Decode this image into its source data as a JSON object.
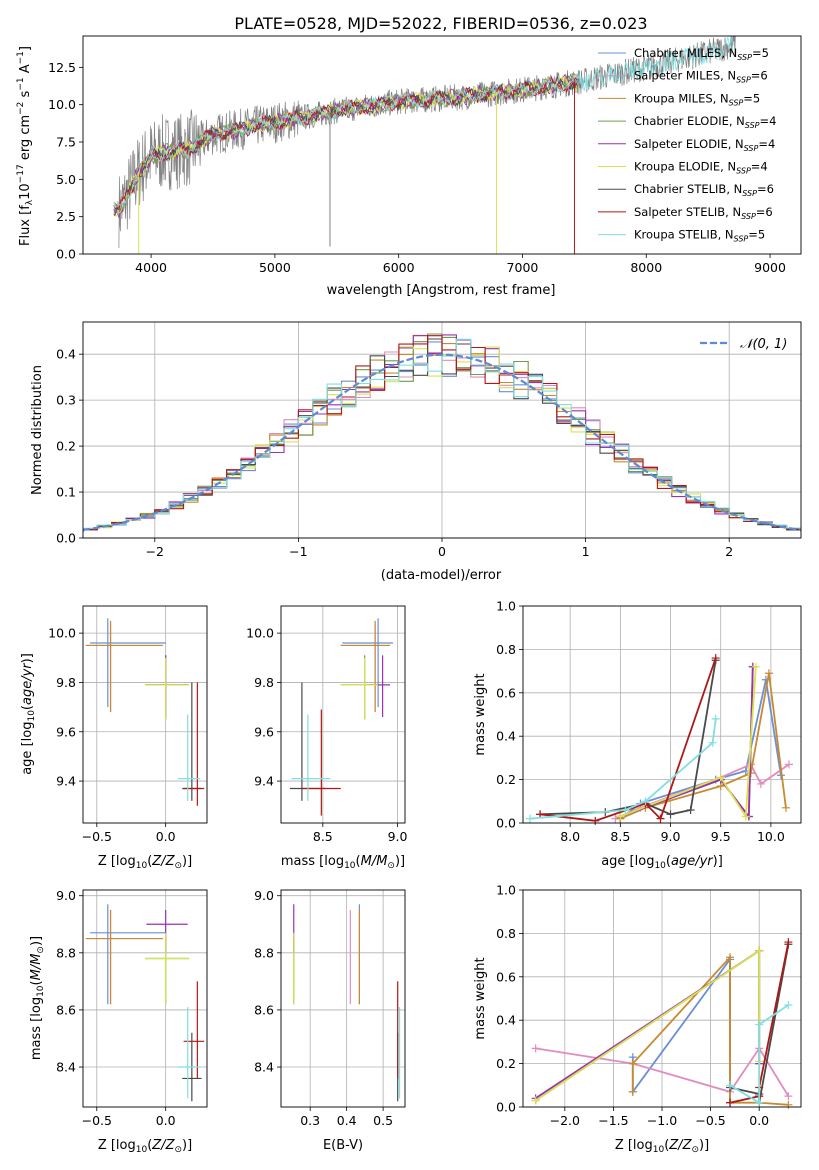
{
  "figure": {
    "title": "PLATE=0528, MJD=52022, FIBERID=0536, z=0.023"
  },
  "models": [
    {
      "label": "Chabrier MILES, N",
      "sub": "SSP",
      "tail": "=5",
      "color": "#6a8fd8"
    },
    {
      "label": "Salpeter MILES, N",
      "sub": "SSP",
      "tail": "=6",
      "color": "#e28bbf"
    },
    {
      "label": "Kroupa MILES, N",
      "sub": "SSP",
      "tail": "=5",
      "color": "#c88a2e"
    },
    {
      "label": "Chabrier ELODIE, N",
      "sub": "SSP",
      "tail": "=4",
      "color": "#6e9a52"
    },
    {
      "label": "Salpeter ELODIE, N",
      "sub": "SSP",
      "tail": "=4",
      "color": "#9b30b0"
    },
    {
      "label": "Kroupa ELODIE, N",
      "sub": "SSP",
      "tail": "=4",
      "color": "#d9e34e"
    },
    {
      "label": "Chabrier STELIB, N",
      "sub": "SSP",
      "tail": "=6",
      "color": "#4a4a4a"
    },
    {
      "label": "Salpeter STELIB, N",
      "sub": "SSP",
      "tail": "=6",
      "color": "#b01818"
    },
    {
      "label": "Kroupa STELIB, N",
      "sub": "SSP",
      "tail": "=5",
      "color": "#80dfe0"
    }
  ],
  "chart_data": [
    {
      "id": "spectrum",
      "type": "line",
      "title": "PLATE=0528, MJD=52022, FIBERID=0536, z=0.023",
      "xlabel": "wavelength [Angstrom, rest frame]",
      "ylabel": "Flux [f",
      "xlim": [
        3450,
        9250
      ],
      "ylim": [
        0,
        14.6
      ],
      "xticks": [
        "4000",
        "5000",
        "6000",
        "7000",
        "8000",
        "9000"
      ],
      "yticks": [
        "0.0",
        "2.5",
        "5.0",
        "7.5",
        "10.0",
        "12.5"
      ],
      "grid": false,
      "legend": "upper-right",
      "continuum_x": [
        3750,
        3900,
        4000,
        4100,
        4300,
        4500,
        5000,
        5500,
        6000,
        6500,
        7000,
        7500,
        8000,
        8500,
        8700
      ],
      "continuum_y": [
        3.0,
        5.5,
        6.5,
        6.8,
        7.0,
        8.0,
        8.8,
        9.6,
        10.2,
        10.5,
        11.0,
        11.6,
        12.5,
        13.5,
        14.0
      ],
      "data_range": [
        3740,
        8720
      ],
      "model_range": [
        3700,
        7450
      ],
      "dropouts": [
        {
          "wavelength": 3900,
          "to": 0.0,
          "series": "Kroupa ELODIE"
        },
        {
          "wavelength": 5445,
          "to": 0.5,
          "series": "data"
        },
        {
          "wavelength": 6790,
          "to": 0.0,
          "series": "Kroupa ELODIE"
        },
        {
          "wavelength": 7420,
          "to": 0.0,
          "series": "Salpeter STELIB"
        }
      ]
    },
    {
      "id": "residuals",
      "type": "histogram",
      "xlabel": "(data-model)/error",
      "ylabel": "Normed distribution",
      "xlim": [
        -2.5,
        2.5
      ],
      "ylim": [
        0,
        0.47
      ],
      "xticks": [
        "−2",
        "−1",
        "0",
        "1",
        "2"
      ],
      "yticks": [
        "0.0",
        "0.1",
        "0.2",
        "0.3",
        "0.4"
      ],
      "grid": true,
      "legend": "upper-right",
      "reference_curve": {
        "name": "𝒩(0, 1)",
        "color": "#5b8ad6",
        "mu": 0,
        "sigma": 1
      },
      "bin_width": 0.1
    },
    {
      "id": "age-vs-Z",
      "type": "errorbar",
      "xlabel": "Z [log",
      "ylabel": "age  [log",
      "xlim": [
        -0.6,
        0.3
      ],
      "ylim": [
        9.23,
        10.11
      ],
      "xticks": [
        "−0.5",
        "0.0"
      ],
      "xtick_values": [
        -0.5,
        0.0
      ],
      "yticks": [
        "9.4",
        "9.6",
        "9.8",
        "10.0"
      ],
      "ytick_values": [
        9.4,
        9.6,
        9.8,
        10.0
      ],
      "grid": true,
      "points": [
        {
          "model": "Chabrier MILES",
          "x": -0.42,
          "xlo": -0.55,
          "xhi": 0.0,
          "y": 9.96,
          "ylo": 9.7,
          "yhi": 10.06
        },
        {
          "model": "Salpeter MILES",
          "x": -0.4,
          "xlo": -0.58,
          "xhi": -0.02,
          "y": 9.95,
          "ylo": 9.68,
          "yhi": 10.04
        },
        {
          "model": "Kroupa MILES",
          "x": -0.4,
          "xlo": -0.58,
          "xhi": -0.02,
          "y": 9.95,
          "ylo": 9.68,
          "yhi": 10.05
        },
        {
          "model": "Chabrier ELODIE",
          "x": 0.0,
          "xlo": -0.15,
          "xhi": 0.17,
          "y": 9.79,
          "ylo": 9.65,
          "yhi": 9.91
        },
        {
          "model": "Salpeter ELODIE",
          "x": 0.0,
          "xlo": -0.14,
          "xhi": 0.16,
          "y": 9.79,
          "ylo": 9.66,
          "yhi": 9.91
        },
        {
          "model": "Kroupa ELODIE",
          "x": 0.0,
          "xlo": -0.15,
          "xhi": 0.17,
          "y": 9.79,
          "ylo": 9.65,
          "yhi": 9.9
        },
        {
          "model": "Chabrier STELIB",
          "x": 0.19,
          "xlo": 0.12,
          "xhi": 0.26,
          "y": 9.37,
          "ylo": 9.32,
          "yhi": 9.8
        },
        {
          "model": "Salpeter STELIB",
          "x": 0.23,
          "xlo": 0.13,
          "xhi": 0.28,
          "y": 9.37,
          "ylo": 9.3,
          "yhi": 9.8
        },
        {
          "model": "Kroupa STELIB",
          "x": 0.16,
          "xlo": 0.09,
          "xhi": 0.25,
          "y": 9.41,
          "ylo": 9.32,
          "yhi": 9.67
        }
      ]
    },
    {
      "id": "age-vs-mass",
      "type": "errorbar",
      "xlabel": "mass [log",
      "ylabel": "",
      "xlim": [
        8.22,
        9.05
      ],
      "ylim": [
        9.23,
        10.11
      ],
      "xticks": [
        "8.5",
        "9.0"
      ],
      "xtick_values": [
        8.5,
        9.0
      ],
      "yticks": [
        "9.4",
        "9.6",
        "9.8",
        "10.0"
      ],
      "ytick_values": [
        9.4,
        9.6,
        9.8,
        10.0
      ],
      "grid": true,
      "points": [
        {
          "model": "Chabrier MILES",
          "x": 8.87,
          "xlo": 8.63,
          "xhi": 8.97,
          "y": 9.96,
          "ylo": 9.7,
          "yhi": 10.06
        },
        {
          "model": "Salpeter MILES",
          "x": 8.85,
          "xlo": 8.62,
          "xhi": 8.95,
          "y": 9.95,
          "ylo": 9.68,
          "yhi": 10.04
        },
        {
          "model": "Kroupa MILES",
          "x": 8.85,
          "xlo": 8.62,
          "xhi": 8.95,
          "y": 9.95,
          "ylo": 9.68,
          "yhi": 10.05
        },
        {
          "model": "Chabrier ELODIE",
          "x": 8.78,
          "xlo": 8.62,
          "xhi": 8.87,
          "y": 9.79,
          "ylo": 9.65,
          "yhi": 9.91
        },
        {
          "model": "Salpeter ELODIE",
          "x": 8.9,
          "xlo": 8.8,
          "xhi": 8.95,
          "y": 9.79,
          "ylo": 9.66,
          "yhi": 9.91
        },
        {
          "model": "Kroupa ELODIE",
          "x": 8.78,
          "xlo": 8.62,
          "xhi": 8.87,
          "y": 9.79,
          "ylo": 9.65,
          "yhi": 9.9
        },
        {
          "model": "Chabrier STELIB",
          "x": 8.36,
          "xlo": 8.28,
          "xhi": 8.52,
          "y": 9.37,
          "ylo": 9.32,
          "yhi": 9.8
        },
        {
          "model": "Salpeter STELIB",
          "x": 8.49,
          "xlo": 8.36,
          "xhi": 8.62,
          "y": 9.37,
          "ylo": 9.26,
          "yhi": 9.69
        },
        {
          "model": "Kroupa STELIB",
          "x": 8.4,
          "xlo": 8.29,
          "xhi": 8.55,
          "y": 9.41,
          "ylo": 9.32,
          "yhi": 9.67
        }
      ]
    },
    {
      "id": "weight-vs-age",
      "type": "line",
      "xlabel": "age  [log",
      "ylabel": "mass weight",
      "xlim": [
        7.53,
        10.3
      ],
      "ylim": [
        0,
        1.0
      ],
      "xticks": [
        "8.0",
        "8.5",
        "9.0",
        "9.5",
        "10.0"
      ],
      "xtick_values": [
        8.0,
        8.5,
        9.0,
        9.5,
        10.0
      ],
      "yticks": [
        "0.0",
        "0.2",
        "0.4",
        "0.6",
        "0.8",
        "1.0"
      ],
      "ytick_values": [
        0,
        0.2,
        0.4,
        0.6,
        0.8,
        1.0
      ],
      "grid": true,
      "series": [
        {
          "name": "Chabrier MILES",
          "x": [
            8.5,
            8.7,
            9.45,
            9.75,
            9.95,
            10.1
          ],
          "y": [
            0.02,
            0.09,
            0.2,
            0.24,
            0.66,
            0.22
          ]
        },
        {
          "name": "Salpeter MILES",
          "x": [
            8.45,
            8.7,
            9.5,
            9.8,
            9.9,
            10.18
          ],
          "y": [
            0.02,
            0.07,
            0.21,
            0.27,
            0.18,
            0.27
          ]
        },
        {
          "name": "Kroupa MILES",
          "x": [
            8.5,
            8.75,
            9.5,
            9.8,
            9.98,
            10.15
          ],
          "y": [
            0.02,
            0.07,
            0.17,
            0.23,
            0.69,
            0.07
          ]
        },
        {
          "name": "Chabrier ELODIE",
          "x": [
            8.5,
            9.5,
            9.78,
            9.82
          ],
          "y": [
            0.03,
            0.2,
            0.03,
            0.72
          ]
        },
        {
          "name": "Salpeter ELODIE",
          "x": [
            8.5,
            9.5,
            9.78,
            9.82
          ],
          "y": [
            0.03,
            0.2,
            0.03,
            0.72
          ]
        },
        {
          "name": "Kroupa ELODIE",
          "x": [
            8.5,
            9.5,
            9.75,
            9.85
          ],
          "y": [
            0.03,
            0.21,
            0.03,
            0.72
          ]
        },
        {
          "name": "Chabrier STELIB",
          "x": [
            7.7,
            8.35,
            8.75,
            9.0,
            9.2,
            9.45
          ],
          "y": [
            0.04,
            0.05,
            0.09,
            0.04,
            0.06,
            0.75
          ]
        },
        {
          "name": "Salpeter STELIB",
          "x": [
            7.7,
            8.25,
            8.75,
            8.9,
            9.45
          ],
          "y": [
            0.04,
            0.01,
            0.09,
            0.02,
            0.76
          ]
        },
        {
          "name": "Kroupa STELIB",
          "x": [
            7.6,
            8.55,
            8.75,
            9.42,
            9.45
          ],
          "y": [
            0.02,
            0.06,
            0.1,
            0.37,
            0.48
          ]
        }
      ]
    },
    {
      "id": "mass-vs-Z",
      "type": "errorbar",
      "xlabel": "Z [log",
      "ylabel": "mass [log",
      "xlim": [
        -0.6,
        0.3
      ],
      "ylim": [
        8.26,
        9.02
      ],
      "xticks": [
        "−0.5",
        "0.0"
      ],
      "xtick_values": [
        -0.5,
        0.0
      ],
      "yticks": [
        "8.4",
        "8.6",
        "8.8",
        "9.0"
      ],
      "ytick_values": [
        8.4,
        8.6,
        8.8,
        9.0
      ],
      "grid": true,
      "points": [
        {
          "model": "Chabrier MILES",
          "x": -0.42,
          "xlo": -0.55,
          "xhi": 0.0,
          "y": 8.87,
          "ylo": 8.62,
          "yhi": 8.97
        },
        {
          "model": "Salpeter MILES",
          "x": -0.4,
          "xlo": -0.58,
          "xhi": -0.02,
          "y": 8.85,
          "ylo": 8.62,
          "yhi": 8.95
        },
        {
          "model": "Kroupa MILES",
          "x": -0.4,
          "xlo": -0.58,
          "xhi": -0.02,
          "y": 8.85,
          "ylo": 8.62,
          "yhi": 8.95
        },
        {
          "model": "Chabrier ELODIE",
          "x": 0.0,
          "xlo": -0.15,
          "xhi": 0.17,
          "y": 8.78,
          "ylo": 8.62,
          "yhi": 8.87
        },
        {
          "model": "Salpeter ELODIE",
          "x": 0.0,
          "xlo": -0.14,
          "xhi": 0.16,
          "y": 8.9,
          "ylo": 8.8,
          "yhi": 8.95
        },
        {
          "model": "Kroupa ELODIE",
          "x": 0.0,
          "xlo": -0.15,
          "xhi": 0.17,
          "y": 8.78,
          "ylo": 8.62,
          "yhi": 8.87
        },
        {
          "model": "Chabrier STELIB",
          "x": 0.19,
          "xlo": 0.12,
          "xhi": 0.26,
          "y": 8.36,
          "ylo": 8.28,
          "yhi": 8.52
        },
        {
          "model": "Salpeter STELIB",
          "x": 0.23,
          "xlo": 0.13,
          "xhi": 0.28,
          "y": 8.49,
          "ylo": 8.36,
          "yhi": 8.7
        },
        {
          "model": "Kroupa STELIB",
          "x": 0.16,
          "xlo": 0.09,
          "xhi": 0.25,
          "y": 8.4,
          "ylo": 8.29,
          "yhi": 8.61
        }
      ]
    },
    {
      "id": "mass-vs-EBV",
      "type": "errorbar",
      "xlabel": "E(B-V)",
      "ylabel": "",
      "xlim": [
        0.22,
        0.56
      ],
      "ylim": [
        8.26,
        9.02
      ],
      "xticks": [
        "0.3",
        "0.4",
        "0.5"
      ],
      "xtick_values": [
        0.3,
        0.4,
        0.5
      ],
      "yticks": [
        "8.4",
        "8.6",
        "8.8",
        "9.0"
      ],
      "ytick_values": [
        8.4,
        8.6,
        8.8,
        9.0
      ],
      "grid": true,
      "points": [
        {
          "model": "Chabrier MILES",
          "x": 0.435,
          "y": 8.87,
          "ylo": 8.62,
          "yhi": 8.97
        },
        {
          "model": "Salpeter MILES",
          "x": 0.41,
          "y": 8.85,
          "ylo": 8.62,
          "yhi": 8.95
        },
        {
          "model": "Kroupa MILES",
          "x": 0.435,
          "y": 8.85,
          "ylo": 8.62,
          "yhi": 8.95
        },
        {
          "model": "Chabrier ELODIE",
          "x": 0.255,
          "y": 8.78,
          "ylo": 8.62,
          "yhi": 8.87
        },
        {
          "model": "Salpeter ELODIE",
          "x": 0.255,
          "y": 8.9,
          "ylo": 8.8,
          "yhi": 8.97
        },
        {
          "model": "Kroupa ELODIE",
          "x": 0.255,
          "y": 8.78,
          "ylo": 8.62,
          "yhi": 8.87
        },
        {
          "model": "Chabrier STELIB",
          "x": 0.54,
          "y": 8.36,
          "ylo": 8.28,
          "yhi": 8.52
        },
        {
          "model": "Salpeter STELIB",
          "x": 0.54,
          "y": 8.49,
          "ylo": 8.36,
          "yhi": 8.7
        },
        {
          "model": "Kroupa STELIB",
          "x": 0.545,
          "y": 8.4,
          "ylo": 8.29,
          "yhi": 8.61
        }
      ]
    },
    {
      "id": "weight-vs-Z",
      "type": "line",
      "xlabel": "Z [log",
      "ylabel": "mass weight",
      "xlim": [
        -2.43,
        0.43
      ],
      "ylim": [
        0,
        1.0
      ],
      "xticks": [
        "−2.0",
        "−1.5",
        "−1.0",
        "−0.5",
        "0.0"
      ],
      "xtick_values": [
        -2.0,
        -1.5,
        -1.0,
        -0.5,
        0.0
      ],
      "yticks": [
        "0.0",
        "0.2",
        "0.4",
        "0.6",
        "0.8",
        "1.0"
      ],
      "ytick_values": [
        0,
        0.2,
        0.4,
        0.6,
        0.8,
        1.0
      ],
      "grid": true,
      "series": [
        {
          "name": "Chabrier MILES",
          "x": [
            -1.3,
            -1.3,
            -0.3,
            -0.3,
            0.0,
            0.0
          ],
          "y": [
            0.23,
            0.07,
            0.68,
            0.02,
            0.05,
            0.02
          ]
        },
        {
          "name": "Salpeter MILES",
          "x": [
            -2.3,
            -1.3,
            -0.3,
            0.0,
            0.3
          ],
          "y": [
            0.27,
            0.2,
            0.07,
            0.27,
            0.05
          ]
        },
        {
          "name": "Kroupa MILES",
          "x": [
            -1.3,
            -1.3,
            -0.3,
            -0.3,
            0.0,
            0.3
          ],
          "y": [
            0.07,
            0.2,
            0.69,
            0.02,
            0.02,
            0.01
          ]
        },
        {
          "name": "Chabrier ELODIE",
          "x": [
            -2.3,
            0.0,
            0.0
          ],
          "y": [
            0.03,
            0.72,
            0.2
          ]
        },
        {
          "name": "Salpeter ELODIE",
          "x": [
            -2.3,
            0.0,
            0.0
          ],
          "y": [
            0.04,
            0.72,
            0.2
          ]
        },
        {
          "name": "Kroupa ELODIE",
          "x": [
            -2.3,
            0.0,
            0.0,
            0.0
          ],
          "y": [
            0.03,
            0.72,
            0.21,
            0.02
          ]
        },
        {
          "name": "Chabrier STELIB",
          "x": [
            -0.3,
            0.0,
            0.0,
            0.3
          ],
          "y": [
            0.09,
            0.06,
            0.02,
            0.75
          ]
        },
        {
          "name": "Salpeter STELIB",
          "x": [
            -0.3,
            0.0,
            0.0,
            0.3
          ],
          "y": [
            0.02,
            0.05,
            0.09,
            0.76
          ]
        },
        {
          "name": "Kroupa STELIB",
          "x": [
            -0.3,
            0.0,
            0.0,
            0.3
          ],
          "y": [
            0.1,
            0.02,
            0.38,
            0.47
          ]
        }
      ]
    }
  ]
}
